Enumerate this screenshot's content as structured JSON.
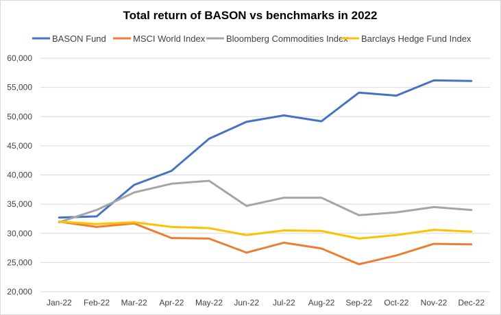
{
  "chart_data": {
    "type": "line",
    "title": "Total return of BASON vs benchmarks in 2022",
    "xlabel": "",
    "ylabel": "",
    "ylim": [
      20000,
      60000
    ],
    "y_ticks": [
      "20,000",
      "25,000",
      "30,000",
      "35,000",
      "40,000",
      "45,000",
      "50,000",
      "55,000",
      "60,000"
    ],
    "grid": true,
    "legend_position": "top",
    "categories": [
      "Jan-22",
      "Feb-22",
      "Mar-22",
      "Apr-22",
      "May-22",
      "Jun-22",
      "Jul-22",
      "Aug-22",
      "Sep-22",
      "Oct-22",
      "Nov-22",
      "Dec-22"
    ],
    "series": [
      {
        "name": "BASON Fund",
        "color": "#4472C4",
        "values": [
          32700,
          32900,
          38300,
          40700,
          46200,
          49100,
          50200,
          49200,
          54100,
          53600,
          56200,
          56100
        ]
      },
      {
        "name": "MSCI World Index",
        "color": "#ED7D31",
        "values": [
          32000,
          31100,
          31700,
          29200,
          29100,
          26700,
          28400,
          27400,
          24700,
          26200,
          28200,
          28100
        ]
      },
      {
        "name": "Bloomberg Commodities Index",
        "color": "#A5A5A5",
        "values": [
          31900,
          34000,
          37000,
          38500,
          39000,
          34700,
          36100,
          36100,
          33100,
          33600,
          34500,
          34000
        ]
      },
      {
        "name": "Barclays Hedge Fund Index",
        "color": "#FFC000",
        "values": [
          32000,
          31600,
          31900,
          31100,
          30900,
          29700,
          30500,
          30400,
          29100,
          29700,
          30600,
          30300
        ]
      }
    ]
  }
}
